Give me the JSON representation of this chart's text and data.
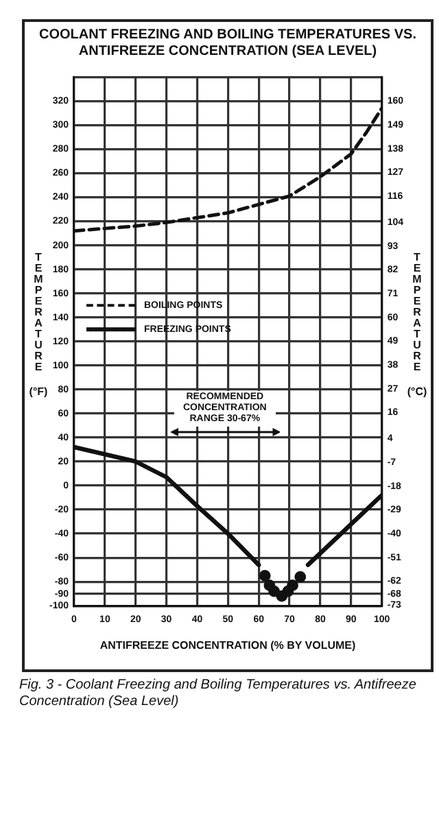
{
  "chart_data": {
    "type": "line",
    "title": "COOLANT FREEZING AND BOILING TEMPERATURES VS. ANTIFREEZE CONCENTRATION (SEA LEVEL)",
    "xlabel": "ANTIFREEZE CONCENTRATION (% BY VOLUME)",
    "ylabel": "TEMPERATURE (°F)",
    "y2label": "TEMPERATURE (°C)",
    "xlim": [
      0,
      100
    ],
    "xticks": [
      0,
      10,
      20,
      30,
      40,
      50,
      60,
      70,
      80,
      90,
      100
    ],
    "ylim": [
      -100,
      340
    ],
    "yticks": [
      -100,
      -90,
      -80,
      -60,
      -40,
      -20,
      0,
      20,
      40,
      60,
      80,
      100,
      120,
      140,
      160,
      180,
      200,
      220,
      240,
      260,
      280,
      300,
      320,
      {
        "value": 340,
        "label": null
      }
    ],
    "y2lim": [
      -73.3,
      171.1
    ],
    "y2ticks": [
      -73,
      -68,
      -62,
      -51,
      -40,
      -29,
      -18,
      -7,
      4,
      16,
      27,
      38,
      49,
      60,
      71,
      82,
      93,
      104,
      116,
      127,
      138,
      149,
      160
    ],
    "grid": true,
    "legend": "left",
    "series": [
      {
        "name": "BOILING POINTS",
        "color": "#111111",
        "line_style": "dashed",
        "marker": "none",
        "x": [
          0,
          10,
          20,
          30,
          40,
          50,
          60,
          70,
          80,
          90,
          95,
          100
        ],
        "values": [
          212,
          214,
          216,
          219,
          223,
          227,
          234,
          241,
          257,
          276,
          294,
          314
        ]
      },
      {
        "name": "FREEZING POINTS",
        "color": "#111111",
        "line_style": "solid",
        "marker": "none",
        "x": [
          0,
          10,
          20,
          30,
          40,
          50,
          60,
          68,
          76,
          88,
          100
        ],
        "values": [
          32,
          26,
          20,
          7,
          -17,
          -40,
          -66,
          null,
          -66,
          -37,
          -8
        ]
      },
      {
        "type": "scatter",
        "color": "#111111",
        "marker": "circle",
        "x": [
          62,
          63.5,
          65,
          67.5,
          69.5,
          71,
          73.5
        ],
        "values": [
          -75,
          -83,
          -88,
          -92,
          -88,
          -83,
          -76
        ]
      }
    ],
    "annotations": [
      "RECOMMENDED CONCENTRATION RANGE 30-67%",
      "Fig. 3 - Coolant Freezing and Boiling Temperatures vs. Antifreeze Concentration (Sea Level)"
    ]
  }
}
